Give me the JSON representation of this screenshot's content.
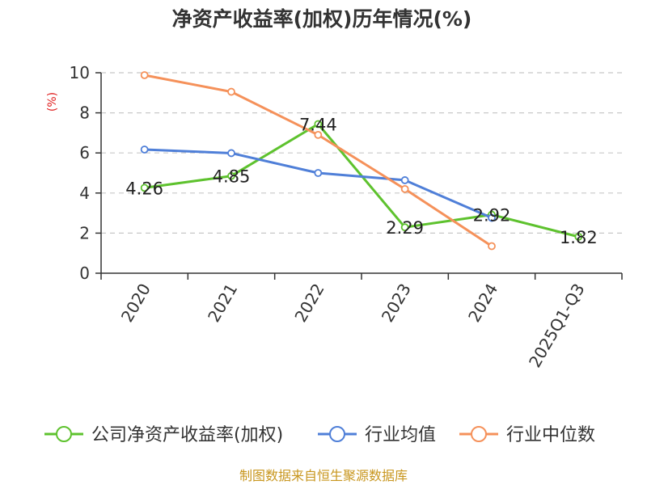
{
  "chart_data": {
    "type": "line",
    "title": "净资产收益率(加权)历年情况(%)",
    "ylabel": "(%)",
    "xlabel": "",
    "categories": [
      "2020",
      "2021",
      "2022",
      "2023",
      "2024",
      "2025Q1-Q3"
    ],
    "ylim": [
      0,
      10
    ],
    "yticks": [
      0,
      2,
      4,
      6,
      8,
      10
    ],
    "grid": true,
    "legend_position": "bottom",
    "series": [
      {
        "name": "公司净资产收益率(加权)",
        "color": "#5ec22e",
        "values": [
          4.26,
          4.85,
          7.44,
          2.29,
          2.92,
          1.82
        ],
        "labels": [
          "4.26",
          "4.85",
          "7.44",
          "2.29",
          "2.92",
          "1.82"
        ]
      },
      {
        "name": "行业均值",
        "color": "#4f7fd8",
        "values": [
          6.17,
          5.99,
          5.0,
          4.64,
          2.76,
          null
        ]
      },
      {
        "name": "行业中位数",
        "color": "#f5915a",
        "values": [
          9.88,
          9.05,
          6.9,
          4.2,
          1.35,
          null
        ]
      }
    ]
  },
  "source": "制图数据来自恒生聚源数据库"
}
